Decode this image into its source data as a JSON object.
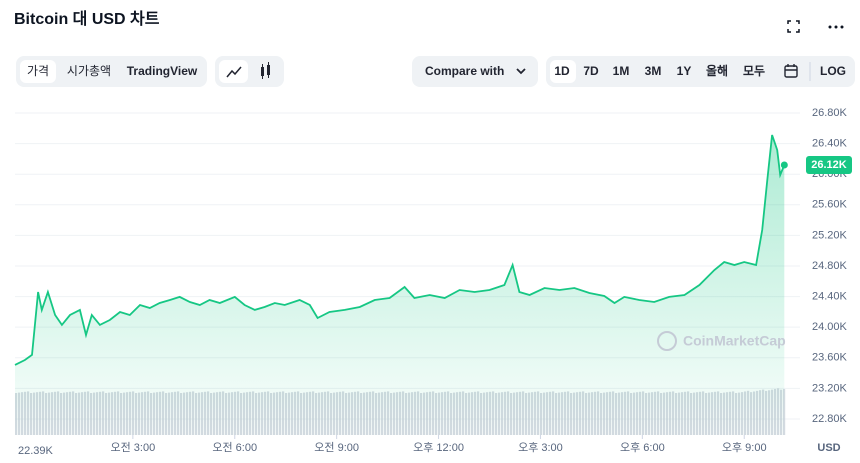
{
  "header": {
    "title": "Bitcoin 대 USD 차트"
  },
  "toolbar": {
    "tabs": [
      "가격",
      "시가총액",
      "TradingView"
    ],
    "compare": "Compare with",
    "ranges": [
      "1D",
      "7D",
      "1M",
      "3M",
      "1Y",
      "올해",
      "모두"
    ],
    "log": "LOG"
  },
  "chart_data": {
    "type": "line",
    "x": [
      -0.47,
      -0.18,
      0.03,
      0.21,
      0.32,
      0.5,
      0.71,
      0.91,
      1.15,
      1.44,
      1.62,
      1.79,
      2.03,
      2.32,
      2.62,
      2.91,
      3.21,
      3.5,
      3.79,
      4.09,
      4.38,
      4.68,
      4.97,
      5.26,
      5.56,
      6.0,
      6.29,
      6.59,
      6.88,
      7.18,
      7.47,
      7.91,
      8.21,
      8.44,
      8.79,
      9.24,
      9.68,
      10.12,
      10.56,
      11.0,
      11.29,
      11.74,
      12.18,
      12.62,
      13.06,
      13.5,
      13.94,
      14.18,
      14.38,
      14.68,
      15.12,
      15.56,
      16.0,
      16.44,
      16.88,
      17.18,
      17.47,
      17.91,
      18.35,
      18.79,
      19.24,
      19.68,
      20.12,
      20.41,
      20.71,
      21.0,
      21.35,
      21.53,
      21.68,
      21.82,
      21.97,
      22.06,
      22.18
    ],
    "series": [
      {
        "name": "Price",
        "color": "#16c784",
        "values": [
          23506,
          23571,
          23637,
          24460,
          24225,
          24460,
          24159,
          24029,
          24159,
          24225,
          23898,
          24159,
          24029,
          24094,
          24198,
          24159,
          24290,
          24251,
          24316,
          24355,
          24395,
          24329,
          24290,
          24355,
          24316,
          24395,
          24290,
          24225,
          24264,
          24316,
          24290,
          24355,
          24290,
          24120,
          24198,
          24225,
          24264,
          24355,
          24381,
          24525,
          24381,
          24421,
          24381,
          24486,
          24460,
          24486,
          24551,
          24813,
          24460,
          24421,
          24512,
          24486,
          24512,
          24447,
          24408,
          24316,
          24395,
          24355,
          24329,
          24395,
          24421,
          24551,
          24747,
          24852,
          24813,
          24852,
          24813,
          25270,
          25924,
          26512,
          26316,
          25989,
          26120
        ]
      }
    ],
    "xlim": [
      -0.47,
      22.2
    ],
    "xticks": [
      {
        "value": 3,
        "label": "오전 3:00"
      },
      {
        "value": 6,
        "label": "오전 6:00"
      },
      {
        "value": 9,
        "label": "오전 9:00"
      },
      {
        "value": 12,
        "label": "오후 12:00"
      },
      {
        "value": 15,
        "label": "오후 3:00"
      },
      {
        "value": 18,
        "label": "오후 6:00"
      },
      {
        "value": 21,
        "label": "오후 9:00"
      }
    ],
    "ylim": [
      22590,
      26970
    ],
    "yticks": [
      {
        "value": 22800,
        "label": "22.80K"
      },
      {
        "value": 23200,
        "label": "23.20K"
      },
      {
        "value": 23600,
        "label": "23.60K"
      },
      {
        "value": 24000,
        "label": "24.00K"
      },
      {
        "value": 24400,
        "label": "24.40K"
      },
      {
        "value": 24800,
        "label": "24.80K"
      },
      {
        "value": 25200,
        "label": "25.20K"
      },
      {
        "value": 25600,
        "label": "25.60K"
      },
      {
        "value": 26000,
        "label": "26.00K"
      },
      {
        "value": 26400,
        "label": "26.40K"
      },
      {
        "value": 26800,
        "label": "26.80K"
      }
    ],
    "grid": true,
    "current_price": {
      "value": 26120,
      "label": "26.12K"
    },
    "volume_label": "22.39K",
    "currency": "USD",
    "watermark": "CoinMarketCap"
  }
}
